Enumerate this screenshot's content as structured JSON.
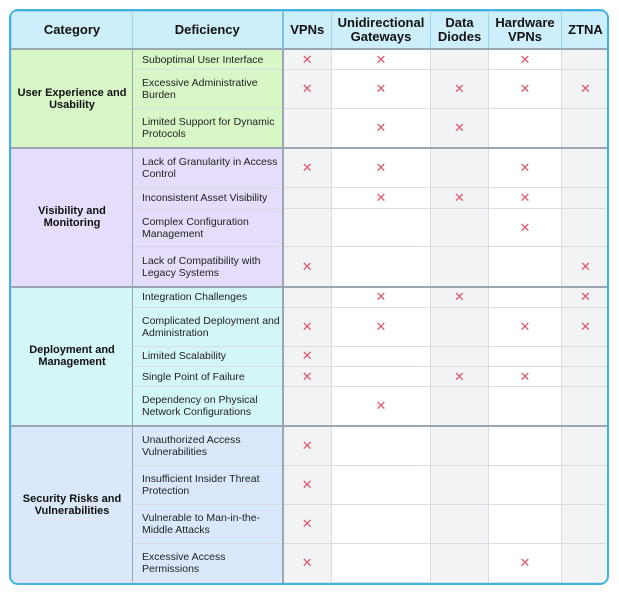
{
  "headers": {
    "category": "Category",
    "deficiency": "Deficiency",
    "vpns": "VPNs",
    "unidirectional": "Unidirectional Gateways",
    "data_diodes": "Data Diodes",
    "hardware_vpns": "Hardware VPNs",
    "ztna": "ZTNA"
  },
  "mark_glyph": "✕",
  "mark_color": "#e0556a",
  "groups": [
    {
      "category": "User Experience and Usability",
      "rows": [
        {
          "deficiency": "Suboptimal User Interface",
          "marks": [
            true,
            true,
            false,
            true,
            false
          ]
        },
        {
          "deficiency": "Excessive Administrative Burden",
          "marks": [
            true,
            true,
            true,
            true,
            true
          ]
        },
        {
          "deficiency": "Limited Support for Dynamic Protocols",
          "marks": [
            false,
            true,
            true,
            false,
            false
          ]
        }
      ]
    },
    {
      "category": "Visibility and Monitoring",
      "rows": [
        {
          "deficiency": "Lack of Granularity in Access Control",
          "marks": [
            true,
            true,
            false,
            true,
            false
          ]
        },
        {
          "deficiency": "Inconsistent Asset Visibility",
          "marks": [
            false,
            true,
            true,
            true,
            false
          ]
        },
        {
          "deficiency": "Complex Configuration Management",
          "marks": [
            false,
            false,
            false,
            true,
            false
          ]
        },
        {
          "deficiency": "Lack of Compatibility with Legacy Systems",
          "marks": [
            true,
            false,
            false,
            false,
            true
          ]
        }
      ]
    },
    {
      "category": "Deployment and Management",
      "rows": [
        {
          "deficiency": "Integration Challenges",
          "marks": [
            false,
            true,
            true,
            false,
            true
          ]
        },
        {
          "deficiency": "Complicated Deployment and Administration",
          "marks": [
            true,
            true,
            false,
            true,
            true
          ]
        },
        {
          "deficiency": "Limited Scalability",
          "marks": [
            true,
            false,
            false,
            false,
            false
          ]
        },
        {
          "deficiency": "Single Point of Failure",
          "marks": [
            true,
            false,
            true,
            true,
            false
          ]
        },
        {
          "deficiency": "Dependency on Physical Network Configurations",
          "marks": [
            false,
            true,
            false,
            false,
            false
          ]
        }
      ]
    },
    {
      "category": "Security Risks and Vulnerabilities",
      "rows": [
        {
          "deficiency": "Unauthorized Access Vulnerabilities",
          "marks": [
            true,
            false,
            false,
            false,
            false
          ]
        },
        {
          "deficiency": "Insufficient Insider Threat Protection",
          "marks": [
            true,
            false,
            false,
            false,
            false
          ]
        },
        {
          "deficiency": "Vulnerable to Man-in-the-Middle Attacks",
          "marks": [
            true,
            false,
            false,
            false,
            false
          ]
        },
        {
          "deficiency": "Excessive Access Permissions",
          "marks": [
            true,
            false,
            false,
            true,
            false
          ]
        }
      ]
    }
  ]
}
